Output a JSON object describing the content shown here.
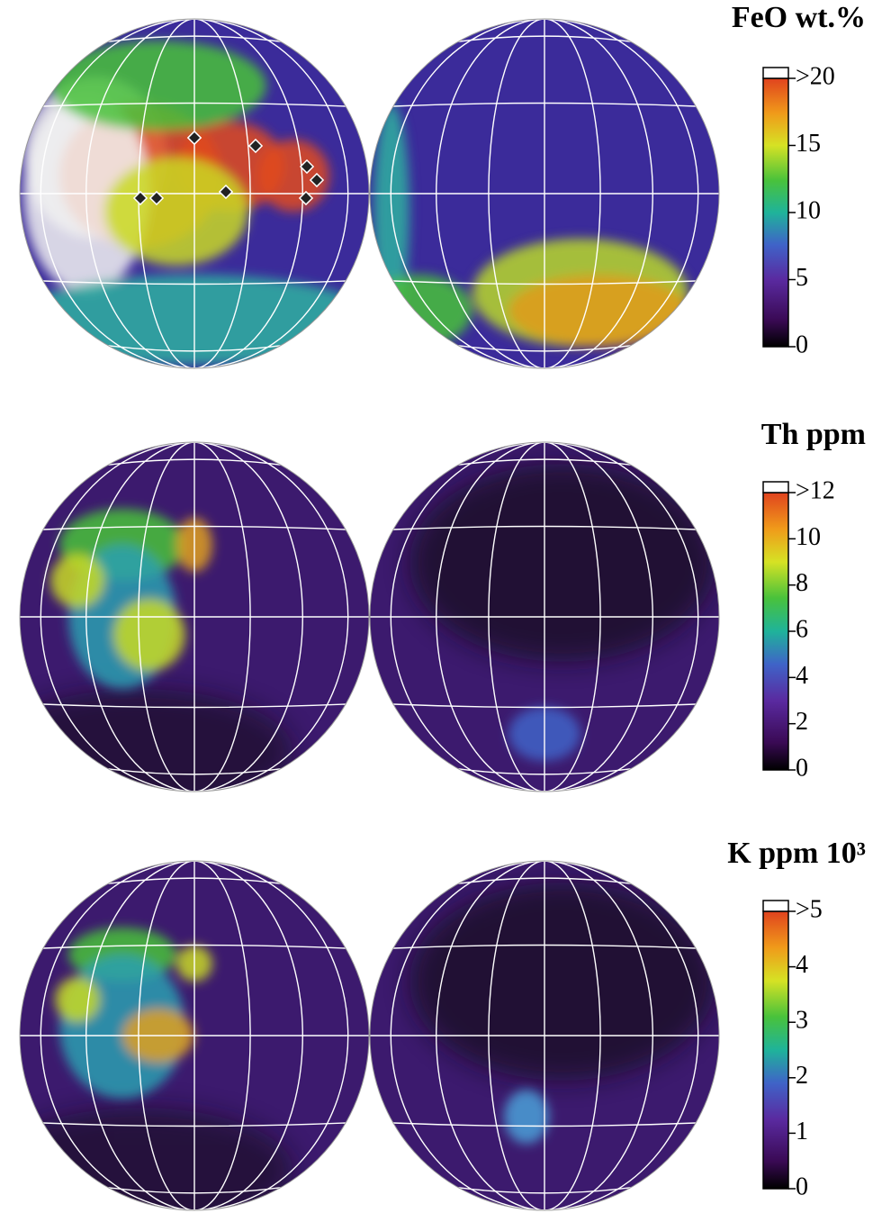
{
  "panels": [
    {
      "title": "FeO wt.%",
      "ticks": [
        {
          "value": 20,
          "label": ">20"
        },
        15,
        10,
        5,
        0
      ]
    },
    {
      "title": "Th ppm",
      "ticks": [
        {
          "value": 12,
          "label": ">12"
        },
        10,
        8,
        6,
        4,
        2,
        0
      ]
    },
    {
      "title": "K ppm 10³",
      "ticks": [
        {
          "value": 5,
          "label": ">5"
        },
        4,
        3,
        2,
        1,
        0
      ]
    }
  ]
}
